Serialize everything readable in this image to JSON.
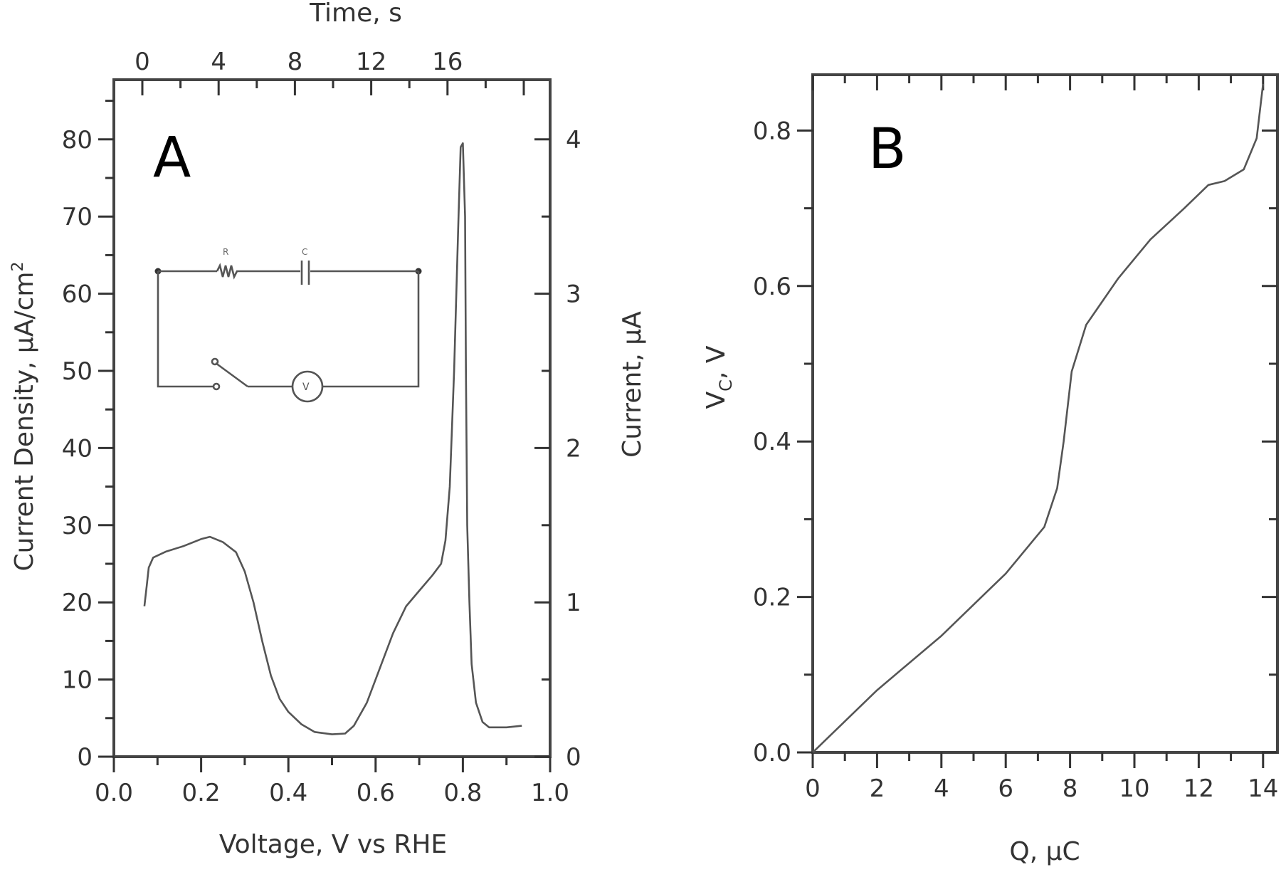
{
  "chart_data": [
    {
      "panel": "A",
      "type": "line",
      "title": "",
      "panel_label": "A",
      "xlabel": "Voltage, V vs RHE",
      "ylabel": "Current Density, µA/cm²",
      "y2label": "Current, µA",
      "x2label": "Time, s",
      "xlim": [
        0.0,
        1.0
      ],
      "ylim": [
        0,
        87
      ],
      "y2lim": [
        0,
        4.35
      ],
      "x2lim": [
        -2.4,
        20.9
      ],
      "xticks": [
        "0.0",
        "0.2",
        "0.4",
        "0.6",
        "0.8",
        "1.0"
      ],
      "yticks": [
        "0",
        "10",
        "20",
        "30",
        "40",
        "50",
        "60",
        "70",
        "80"
      ],
      "y2ticks": [
        "0",
        "1",
        "2",
        "3",
        "4"
      ],
      "x2ticks": [
        "0",
        "4",
        "8",
        "12",
        "16"
      ],
      "grid": false,
      "legend": null,
      "inset": {
        "description": "series RC circuit with switch and voltage source",
        "components": [
          "R",
          "C",
          "switch",
          "V_ref"
        ],
        "labels": {
          "resistor": "R",
          "capacitor": "C",
          "source": "V"
        }
      },
      "series": [
        {
          "name": "current density",
          "x": [
            0.07,
            0.075,
            0.08,
            0.09,
            0.12,
            0.16,
            0.2,
            0.22,
            0.25,
            0.28,
            0.3,
            0.32,
            0.34,
            0.36,
            0.38,
            0.4,
            0.43,
            0.46,
            0.5,
            0.53,
            0.55,
            0.58,
            0.61,
            0.64,
            0.67,
            0.7,
            0.73,
            0.75,
            0.76,
            0.77,
            0.78,
            0.79,
            0.795,
            0.8,
            0.805,
            0.807,
            0.81,
            0.815,
            0.82,
            0.83,
            0.845,
            0.86,
            0.9,
            0.935
          ],
          "y": [
            19.5,
            22,
            24.5,
            25.8,
            26.6,
            27.3,
            28.2,
            28.5,
            27.8,
            26.5,
            24,
            20,
            15,
            10.5,
            7.5,
            5.8,
            4.2,
            3.2,
            2.9,
            3.0,
            4,
            7,
            11.5,
            16,
            19.5,
            21.5,
            23.5,
            25,
            28,
            35,
            50,
            70,
            79,
            79.5,
            70,
            50,
            30,
            20,
            12,
            7,
            4.5,
            3.8,
            3.8,
            4.0
          ]
        }
      ]
    },
    {
      "panel": "B",
      "type": "line",
      "title": "",
      "panel_label": "B",
      "xlabel": "Q, µC",
      "ylabel": "V_C, V",
      "xlim": [
        0,
        14.4
      ],
      "ylim": [
        0.0,
        0.875
      ],
      "xticks": [
        "0",
        "2",
        "4",
        "6",
        "8",
        "10",
        "12",
        "14"
      ],
      "yticks": [
        "0.0",
        "0.2",
        "0.4",
        "0.6",
        "0.8"
      ],
      "grid": false,
      "legend": null,
      "series": [
        {
          "name": "capacitor voltage",
          "x": [
            0,
            2,
            4,
            6,
            7.2,
            7.6,
            7.8,
            8.05,
            8.5,
            9.5,
            10.5,
            11.55,
            12.3,
            12.8,
            13.4,
            13.8,
            14.0
          ],
          "y": [
            0,
            0.08,
            0.15,
            0.23,
            0.29,
            0.34,
            0.4,
            0.49,
            0.55,
            0.61,
            0.66,
            0.7,
            0.73,
            0.735,
            0.75,
            0.79,
            0.86
          ]
        }
      ]
    }
  ],
  "panelA": {
    "label": "A",
    "top_axis_title": "Time, s",
    "bottom_axis_title": "Voltage, V vs RHE",
    "left_axis_title": "Current Density, µA/cm",
    "left_axis_sup": "2",
    "right_axis_title": "Current, µA",
    "xticks": [
      "0.0",
      "0.2",
      "0.4",
      "0.6",
      "0.8",
      "1.0"
    ],
    "yticks": [
      "0",
      "10",
      "20",
      "30",
      "40",
      "50",
      "60",
      "70",
      "80"
    ],
    "y2ticks": [
      "0",
      "1",
      "2",
      "3",
      "4"
    ],
    "x2ticks": [
      "0",
      "4",
      "8",
      "12",
      "16"
    ],
    "inset": {
      "r_label": "R",
      "c_label": "C",
      "v_label": "V"
    }
  },
  "panelB": {
    "label": "B",
    "bottom_axis_title": "Q, µC",
    "left_axis_title_main": "V",
    "left_axis_title_sub": "C",
    "left_axis_title_rest": ", V",
    "xticks": [
      "0",
      "2",
      "4",
      "6",
      "8",
      "10",
      "12",
      "14"
    ],
    "yticks": [
      "0.0",
      "0.2",
      "0.4",
      "0.6",
      "0.8"
    ]
  },
  "colors": {
    "curve": "#555555",
    "axes": "#444444",
    "text": "#333333",
    "background": "#ffffff"
  }
}
